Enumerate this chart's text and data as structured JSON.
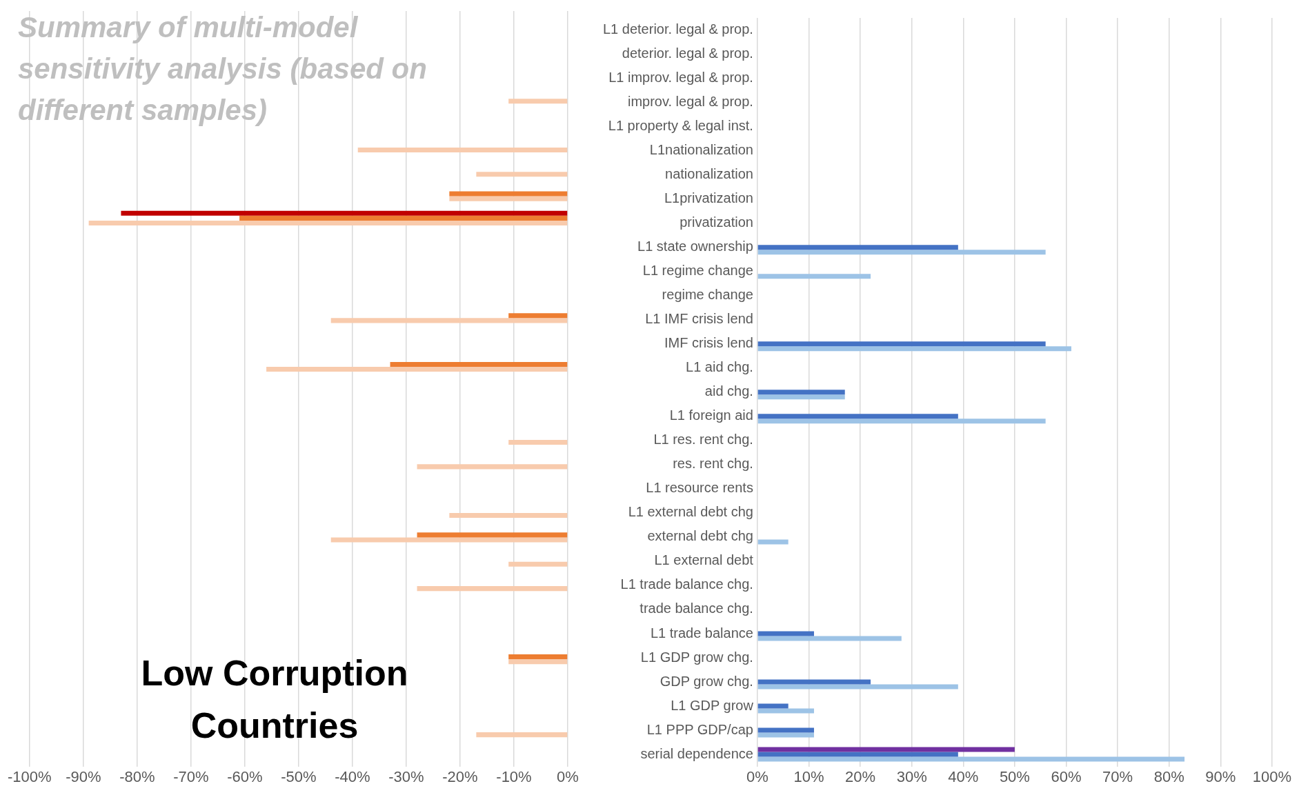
{
  "chart_data": [
    {
      "type": "bar",
      "orientation": "horizontal",
      "title": "Summary of multi-model sensitivity analysis (based on different samples)",
      "annotations": [
        "Low Corruption Countries"
      ],
      "tick_labels": "x",
      "grid": "x",
      "categories": [
        null,
        null,
        null,
        null,
        null,
        null,
        null,
        null,
        null,
        null,
        null,
        null,
        null,
        null,
        null,
        null,
        null,
        null,
        null,
        null,
        null,
        null,
        null,
        null,
        null,
        null,
        null,
        null,
        null,
        null,
        null
      ],
      "xlim": [
        -100,
        0
      ],
      "xticks": [
        {
          "value": -100,
          "label": "-100%"
        },
        {
          "value": -90,
          "label": "-90%"
        },
        {
          "value": -80,
          "label": "-80%"
        },
        {
          "value": -70,
          "label": "-70%"
        },
        {
          "value": -60,
          "label": "-60%"
        },
        {
          "value": -50,
          "label": "-50%"
        },
        {
          "value": -40,
          "label": "-40%"
        },
        {
          "value": -30,
          "label": "-30%"
        },
        {
          "value": -20,
          "label": "-20%"
        },
        {
          "value": -10,
          "label": "-10%"
        },
        {
          "value": 0,
          "label": "0%"
        }
      ],
      "series": [
        {
          "color": "#c00000",
          "values": [
            null,
            null,
            null,
            null,
            null,
            null,
            null,
            null,
            -83,
            null,
            null,
            null,
            null,
            null,
            null,
            null,
            null,
            null,
            null,
            null,
            null,
            null,
            null,
            null,
            null,
            null,
            null,
            null,
            null,
            null,
            null
          ]
        },
        {
          "color": "#ed7d31",
          "values": [
            null,
            null,
            null,
            null,
            null,
            null,
            null,
            -22,
            -61,
            null,
            null,
            null,
            -11,
            null,
            -33,
            null,
            null,
            null,
            null,
            null,
            null,
            -28,
            null,
            null,
            null,
            null,
            -11,
            null,
            null,
            null,
            null
          ]
        },
        {
          "color": "#f8cbad",
          "values": [
            null,
            null,
            null,
            -11,
            null,
            -39,
            -17,
            -22,
            -89,
            null,
            null,
            null,
            -44,
            null,
            -56,
            null,
            null,
            -11,
            -28,
            null,
            -22,
            -44,
            -11,
            -28,
            null,
            null,
            -11,
            null,
            null,
            -17,
            null
          ]
        }
      ]
    },
    {
      "type": "bar",
      "orientation": "horizontal",
      "grid": "x",
      "categories": [
        "L1 deterior. legal & prop.",
        "deterior. legal & prop.",
        "L1 improv. legal & prop.",
        "improv. legal & prop.",
        "L1 property & legal inst.",
        "L1nationalization",
        "nationalization",
        "L1privatization",
        "privatization",
        "L1 state ownership",
        "L1 regime change",
        "regime change",
        "L1 IMF crisis lend",
        "IMF crisis lend",
        "L1 aid chg.",
        "aid chg.",
        "L1 foreign aid",
        "L1 res. rent chg.",
        "res. rent chg.",
        "L1 resource rents",
        "L1 external debt chg",
        "external debt chg",
        "L1 external debt",
        "L1 trade balance chg.",
        "trade balance chg.",
        "L1 trade balance",
        "L1 GDP grow chg.",
        "GDP grow chg.",
        "L1 GDP grow",
        "L1 PPP GDP/cap",
        "serial dependence"
      ],
      "xlim": [
        0,
        100
      ],
      "xticks": [
        {
          "value": 0,
          "label": "0%"
        },
        {
          "value": 10,
          "label": "10%"
        },
        {
          "value": 20,
          "label": "20%"
        },
        {
          "value": 30,
          "label": "30%"
        },
        {
          "value": 40,
          "label": "40%"
        },
        {
          "value": 50,
          "label": "50%"
        },
        {
          "value": 60,
          "label": "60%"
        },
        {
          "value": 70,
          "label": "70%"
        },
        {
          "value": 80,
          "label": "80%"
        },
        {
          "value": 90,
          "label": "90%"
        },
        {
          "value": 100,
          "label": "100%"
        }
      ],
      "series": [
        {
          "color": "#7030a0",
          "values": [
            null,
            null,
            null,
            null,
            null,
            null,
            null,
            null,
            null,
            null,
            null,
            null,
            null,
            null,
            null,
            null,
            null,
            null,
            null,
            null,
            null,
            null,
            null,
            null,
            null,
            null,
            null,
            null,
            null,
            null,
            50
          ]
        },
        {
          "color": "#4472c4",
          "values": [
            null,
            null,
            null,
            null,
            null,
            null,
            null,
            null,
            null,
            39,
            null,
            null,
            null,
            56,
            null,
            17,
            39,
            null,
            null,
            null,
            null,
            null,
            null,
            null,
            null,
            11,
            null,
            22,
            6,
            11,
            39
          ]
        },
        {
          "color": "#9dc3e6",
          "values": [
            null,
            null,
            null,
            null,
            null,
            null,
            null,
            null,
            null,
            56,
            22,
            null,
            null,
            61,
            null,
            17,
            56,
            null,
            null,
            null,
            null,
            6,
            null,
            null,
            null,
            28,
            null,
            39,
            11,
            11,
            83
          ]
        }
      ]
    }
  ]
}
